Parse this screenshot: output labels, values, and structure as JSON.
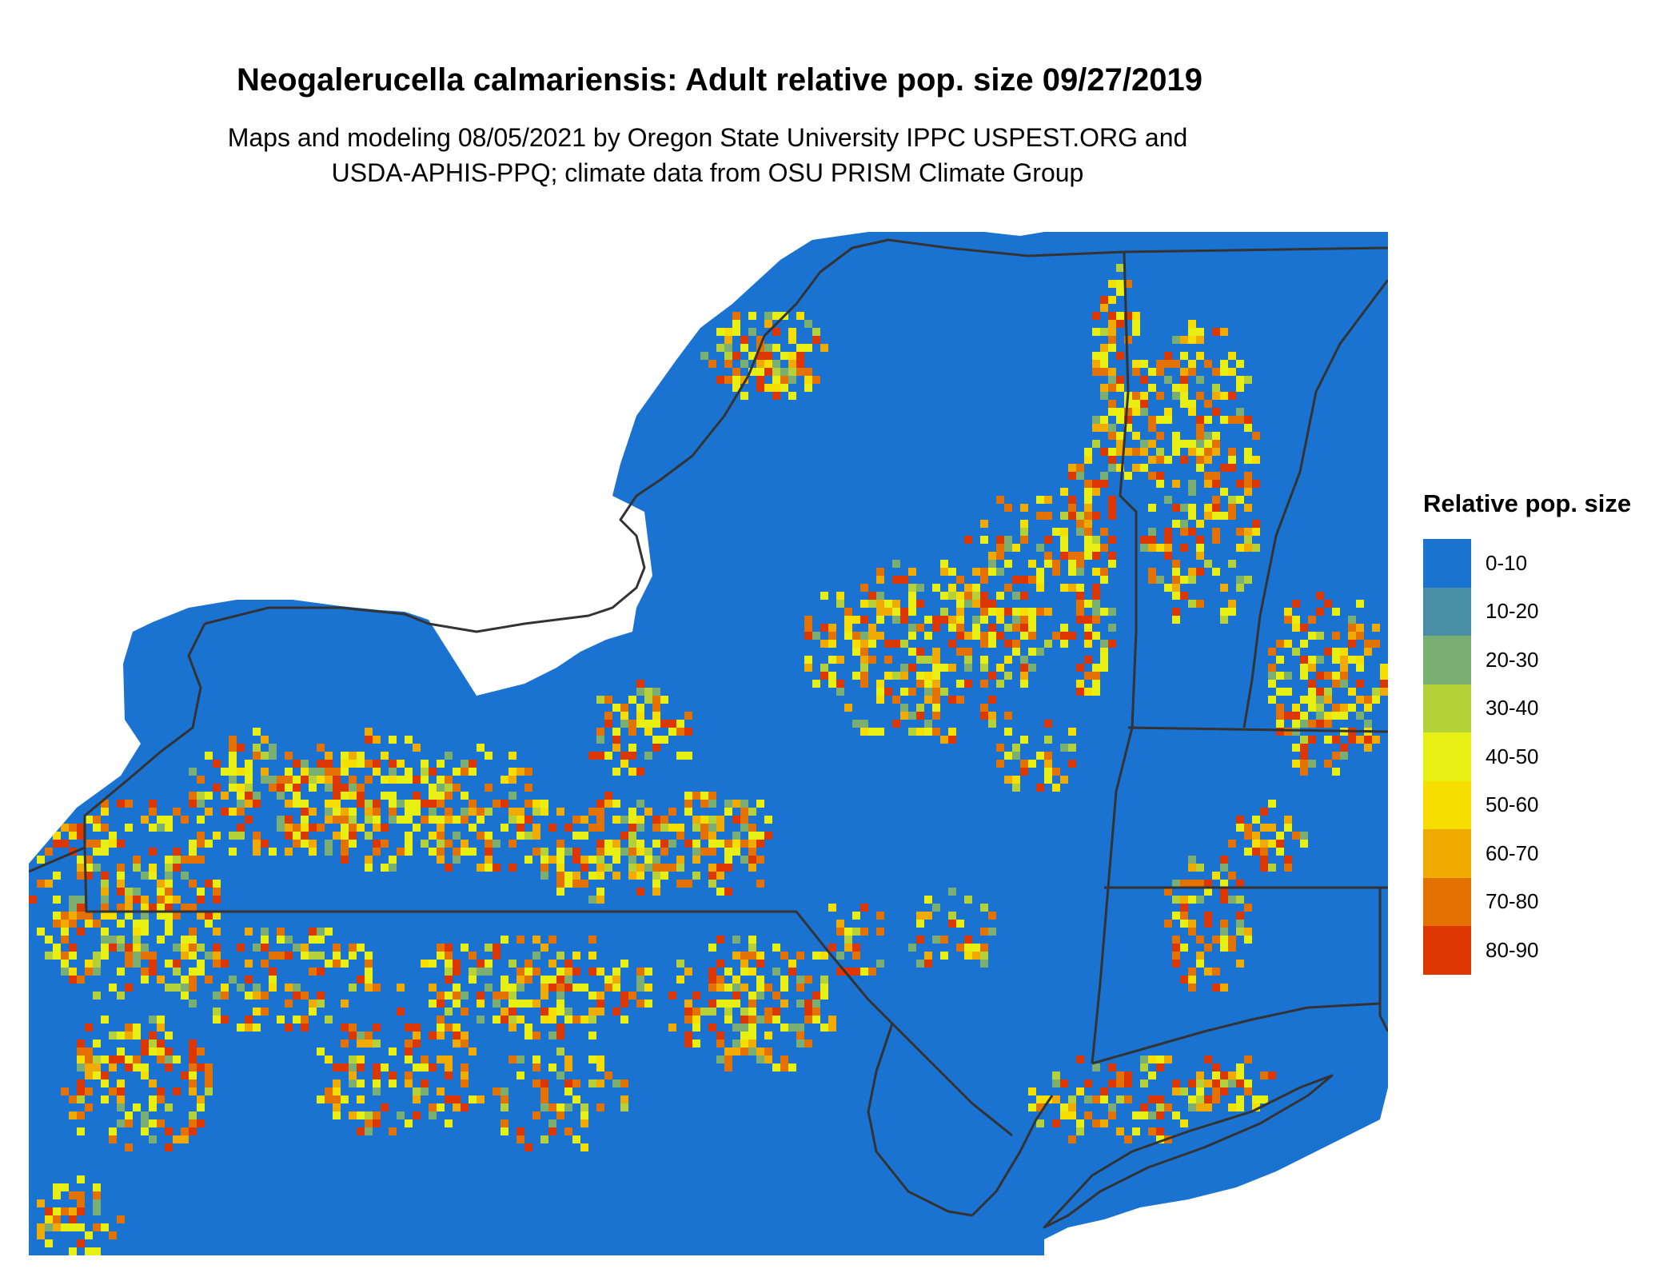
{
  "title": "Neogalerucella calmariensis: Adult relative pop. size 09/27/2019",
  "subtitle_line1": "Maps and modeling 08/05/2021 by Oregon State University IPPC USPEST.ORG and",
  "subtitle_line2": "USDA-APHIS-PPQ; climate data from OSU PRISM Climate Group",
  "legend": {
    "title": "Relative pop. size",
    "items": [
      {
        "label": "0-10",
        "color": "#1a73d1"
      },
      {
        "label": "10-20",
        "color": "#4a8ea6"
      },
      {
        "label": "20-30",
        "color": "#7aae72"
      },
      {
        "label": "30-40",
        "color": "#b4d13a"
      },
      {
        "label": "40-50",
        "color": "#e8ef12"
      },
      {
        "label": "50-60",
        "color": "#f6de00"
      },
      {
        "label": "60-70",
        "color": "#f0aa00"
      },
      {
        "label": "70-80",
        "color": "#e37200"
      },
      {
        "label": "80-90",
        "color": "#dc3700"
      }
    ]
  },
  "map": {
    "region": "New York, Pennsylvania, New Jersey, Vermont, Massachusetts, Connecticut",
    "background_color": "#1a73d1",
    "border_color": "#333333"
  }
}
